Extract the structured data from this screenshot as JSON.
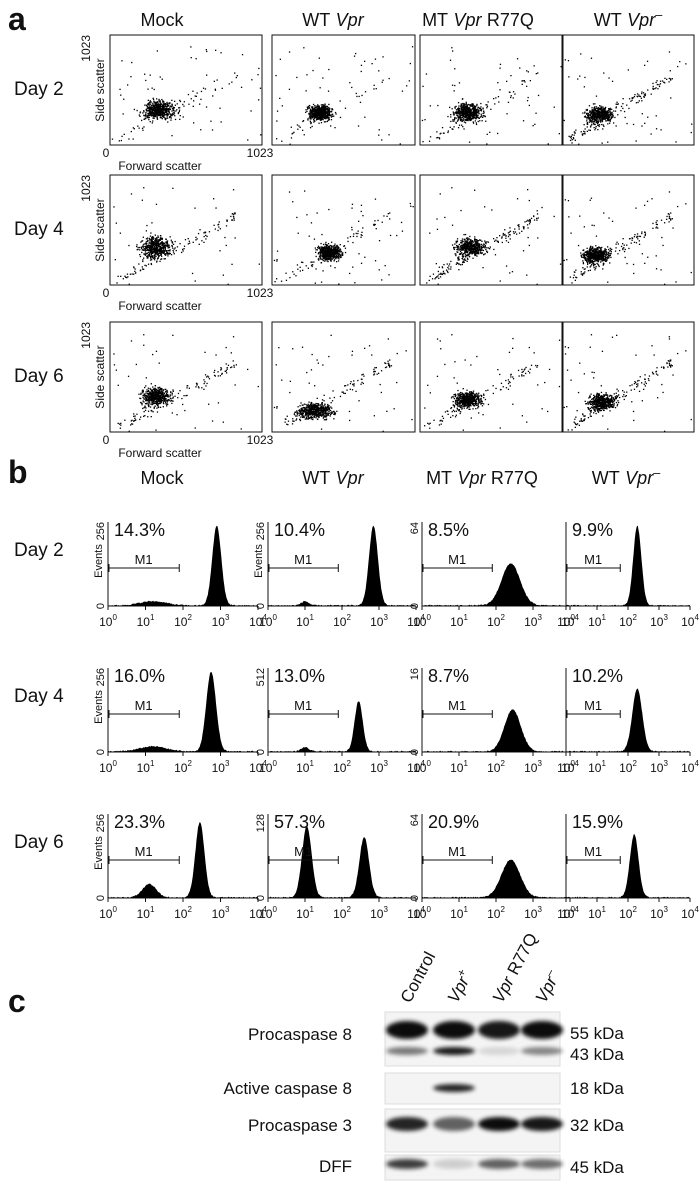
{
  "panel_a": {
    "label": "a",
    "columns": [
      {
        "name": "Mock"
      },
      {
        "prefix": "WT",
        "gene": "Vpr"
      },
      {
        "prefix": "MT",
        "gene": "Vpr",
        "suffix": "R77Q"
      },
      {
        "prefix": "WT",
        "gene": "Vpr",
        "sup": "–"
      }
    ],
    "rows": [
      {
        "label": "Day 2",
        "y_axis_label": "Side scatter",
        "x_axis_label": "Forward scatter",
        "origin": "0",
        "y_max": "1023",
        "x_max": "1023"
      },
      {
        "label": "Day 4",
        "y_axis_label": "Side scatter",
        "x_axis_label": "Forward scatter",
        "origin": "0",
        "y_max": "1023",
        "x_max": "1023"
      },
      {
        "label": "Day 6",
        "y_axis_label": "Side scatter",
        "x_axis_label": "Forward scatter",
        "origin": "0",
        "y_max": "1023",
        "x_max": "1023"
      }
    ]
  },
  "panel_b": {
    "label": "b",
    "columns": [
      {
        "name": "Mock"
      },
      {
        "prefix": "WT",
        "gene": "Vpr"
      },
      {
        "prefix": "MT",
        "gene": "Vpr",
        "suffix": "R77Q"
      },
      {
        "prefix": "WT",
        "gene": "Vpr",
        "sup": "–"
      }
    ],
    "x_ticks": [
      {
        "base": "10",
        "exp": "0"
      },
      {
        "base": "10",
        "exp": "1"
      },
      {
        "base": "10",
        "exp": "2"
      },
      {
        "base": "10",
        "exp": "3"
      },
      {
        "base": "10",
        "exp": "4"
      }
    ],
    "rows": [
      {
        "label": "Day 2",
        "cells": [
          {
            "percent": "14.3%",
            "y_max": "256",
            "y_min": "0",
            "y_axis_label": "Events",
            "gate": "M1"
          },
          {
            "percent": "10.4%",
            "y_max": "256",
            "y_min": "0",
            "y_axis_label": "Events",
            "gate": "M1"
          },
          {
            "percent": "8.5%",
            "y_max": "64",
            "y_min": "0",
            "gate": "M1"
          },
          {
            "percent": "9.9%",
            "gate": "M1"
          }
        ]
      },
      {
        "label": "Day 4",
        "cells": [
          {
            "percent": "16.0%",
            "y_max": "256",
            "y_min": "0",
            "y_axis_label": "Events",
            "gate": "M1"
          },
          {
            "percent": "13.0%",
            "y_max": "512",
            "y_min": "0",
            "gate": "M1"
          },
          {
            "percent": "8.7%",
            "y_max": "16",
            "y_min": "0",
            "gate": "M1"
          },
          {
            "percent": "10.2%",
            "gate": "M1"
          }
        ]
      },
      {
        "label": "Day 6",
        "cells": [
          {
            "percent": "23.3%",
            "y_max": "256",
            "y_min": "0",
            "y_axis_label": "Events",
            "gate": "M1"
          },
          {
            "percent": "57.3%",
            "y_max": "128",
            "y_min": "0",
            "gate": "M1"
          },
          {
            "percent": "20.9%",
            "y_max": "64",
            "y_min": "0",
            "gate": "M1"
          },
          {
            "percent": "15.9%",
            "gate": "M1"
          }
        ]
      }
    ]
  },
  "panel_c": {
    "label": "c",
    "lanes": [
      {
        "name": "Control"
      },
      {
        "gene": "Vpr",
        "sup": "+"
      },
      {
        "gene": "Vpr",
        "suffix": "R77Q"
      },
      {
        "gene": "Vpr",
        "sup": "–"
      }
    ],
    "rows": [
      {
        "name": "Procaspase 8",
        "sizes": [
          "55 kDa",
          "43 kDa"
        ]
      },
      {
        "name": "Active caspase 8",
        "sizes": [
          "18 kDa"
        ]
      },
      {
        "name": "Procaspase 3",
        "sizes": [
          "32 kDa"
        ]
      },
      {
        "name": "DFF",
        "sizes": [
          "45 kDa"
        ]
      }
    ]
  }
}
